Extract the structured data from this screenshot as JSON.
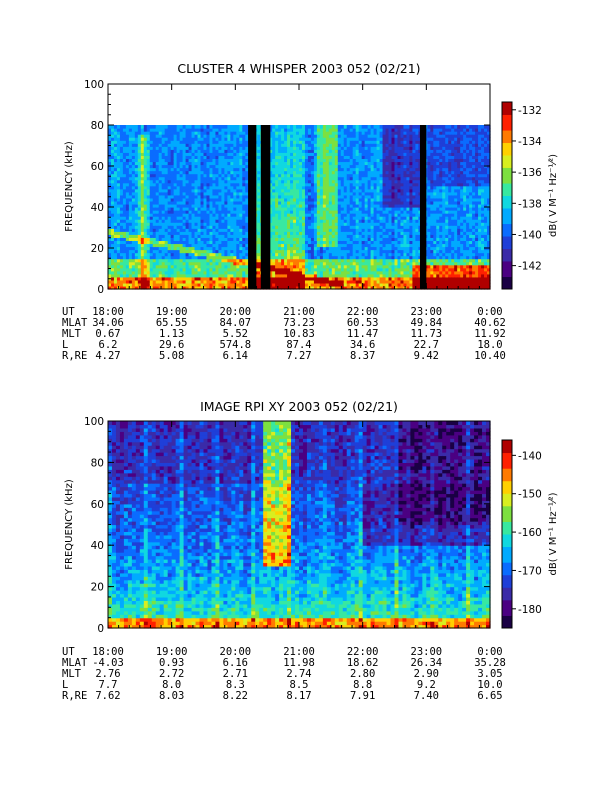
{
  "chart_data": [
    {
      "type": "heatmap",
      "title": "CLUSTER 4 WHISPER 2003 052 (02/21)",
      "ylabel": "FREQUENCY (kHz)",
      "ylim": [
        0,
        100
      ],
      "yticks": [
        "0",
        "20",
        "40",
        "60",
        "80",
        "100"
      ],
      "x_tick_labels": [
        "18:00",
        "19:00",
        "20:00",
        "21:00",
        "22:00",
        "23:00",
        "0:00"
      ],
      "xlim_hours": [
        18,
        24
      ],
      "data_max_frequency_khz": 80,
      "data_gaps_hours": [
        [
          20.2,
          20.33
        ],
        [
          20.4,
          20.55
        ],
        [
          22.9,
          23.0
        ]
      ],
      "colorbar": {
        "label": "dB( V M⁻¹ Hz⁻¹⁄²)",
        "range": [
          -143.5,
          -131.5
        ],
        "ticks": [
          "-132",
          "-134",
          "-136",
          "-138",
          "-140",
          "-142"
        ]
      },
      "ephemeris": {
        "labels": [
          "UT",
          "MLAT",
          "MLT",
          "L",
          "R,RE"
        ],
        "rows": [
          [
            "18:00",
            "19:00",
            "20:00",
            "21:00",
            "22:00",
            "23:00",
            "0:00"
          ],
          [
            "34.06",
            "65.55",
            "84.07",
            "73.23",
            "60.53",
            "49.84",
            "40.62"
          ],
          [
            "0.67",
            "1.13",
            "5.52",
            "10.83",
            "11.47",
            "11.73",
            "11.92"
          ],
          [
            "6.2",
            "29.6",
            "574.8",
            "87.4",
            "34.6",
            "22.7",
            "18.0"
          ],
          [
            "4.27",
            "5.08",
            "6.14",
            "7.27",
            "8.37",
            "9.42",
            "10.40"
          ]
        ]
      }
    },
    {
      "type": "heatmap",
      "title": "IMAGE RPI XY 2003 052 (02/21)",
      "ylabel": "FREQUENCY (kHz)",
      "ylim": [
        0,
        100
      ],
      "yticks": [
        "0",
        "20",
        "40",
        "60",
        "80",
        "100"
      ],
      "x_tick_labels": [
        "18:00",
        "19:00",
        "20:00",
        "21:00",
        "22:00",
        "23:00",
        "0:00"
      ],
      "xlim_hours": [
        18,
        24
      ],
      "colorbar": {
        "label": "dB( V M⁻¹ Hz⁻¹⁄²)",
        "range": [
          -185,
          -136
        ],
        "ticks": [
          "-140",
          "-150",
          "-160",
          "-170",
          "-180"
        ]
      },
      "ephemeris": {
        "labels": [
          "UT",
          "MLAT",
          "MLT",
          "L",
          "R,RE"
        ],
        "rows": [
          [
            "18:00",
            "19:00",
            "20:00",
            "21:00",
            "22:00",
            "23:00",
            "0:00"
          ],
          [
            "-4.03",
            "0.93",
            "6.16",
            "11.98",
            "18.62",
            "26.34",
            "35.28"
          ],
          [
            "2.76",
            "2.72",
            "2.71",
            "2.74",
            "2.80",
            "2.90",
            "3.05"
          ],
          [
            "7.7",
            "8.0",
            "8.3",
            "8.5",
            "8.8",
            "9.2",
            "10.0"
          ],
          [
            "7.62",
            "8.03",
            "8.22",
            "8.17",
            "7.91",
            "7.40",
            "6.65"
          ]
        ]
      }
    }
  ],
  "colors": {
    "palette": [
      "#1a0044",
      "#4b0082",
      "#3a2ba8",
      "#1f3fd8",
      "#0a6cff",
      "#00aaff",
      "#10d8e0",
      "#38e8a0",
      "#7de040",
      "#d8ee20",
      "#ffd000",
      "#ff7a00",
      "#ff2000",
      "#b00000"
    ],
    "gap": "#000000",
    "background": "#ffffff"
  }
}
